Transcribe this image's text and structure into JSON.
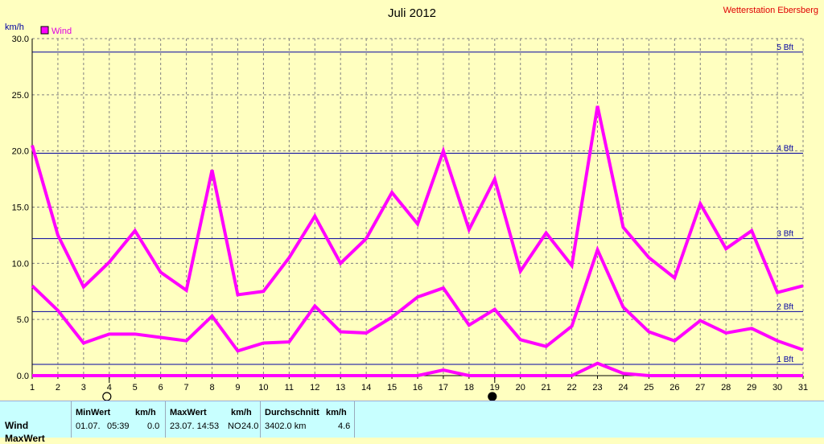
{
  "station": "Wetterstation Ebersberg",
  "chart_data": {
    "type": "line",
    "title": "Juli 2012",
    "ylabel": "km/h",
    "xlabel": "",
    "ylim": [
      0,
      30
    ],
    "yticks": [
      "0.0",
      "5.0",
      "10.0",
      "15.0",
      "20.0",
      "25.0",
      "30.0"
    ],
    "x": [
      1,
      2,
      3,
      4,
      5,
      6,
      7,
      8,
      9,
      10,
      11,
      12,
      13,
      14,
      15,
      16,
      17,
      18,
      19,
      20,
      21,
      22,
      23,
      24,
      25,
      26,
      27,
      28,
      29,
      30,
      31
    ],
    "legend": [
      "Wind"
    ],
    "grid": true,
    "series": [
      {
        "name": "Wind",
        "role": "max",
        "values": [
          20.5,
          12.5,
          7.9,
          10.1,
          12.9,
          9.2,
          7.6,
          18.3,
          7.2,
          7.5,
          10.5,
          14.2,
          10.0,
          12.2,
          16.3,
          13.5,
          20.0,
          13.0,
          17.5,
          9.3,
          12.7,
          9.8,
          24.0,
          13.2,
          10.5,
          8.7,
          15.3,
          11.3,
          12.9,
          7.4,
          8.0
        ]
      },
      {
        "name": "Wind",
        "role": "avg",
        "values": [
          8.0,
          5.8,
          2.9,
          3.7,
          3.7,
          3.4,
          3.1,
          5.3,
          2.2,
          2.9,
          3.0,
          6.2,
          3.9,
          3.8,
          5.2,
          7.0,
          7.8,
          4.5,
          5.9,
          3.2,
          2.6,
          4.4,
          11.2,
          6.1,
          3.9,
          3.1,
          4.9,
          3.8,
          4.2,
          3.1,
          2.3
        ]
      },
      {
        "name": "Wind",
        "role": "min",
        "values": [
          0,
          0,
          0,
          0,
          0,
          0,
          0,
          0,
          0,
          0,
          0,
          0,
          0,
          0,
          0,
          0,
          0.5,
          0,
          0,
          0,
          0,
          0,
          1.1,
          0.2,
          0,
          0,
          0,
          0,
          0,
          0,
          0
        ]
      }
    ],
    "reference_lines": [
      {
        "label": "1 Bft",
        "value": 1
      },
      {
        "label": "2 Bft",
        "value": 5.7
      },
      {
        "label": "3 Bft",
        "value": 12.2
      },
      {
        "label": "4 Bft",
        "value": 19.8
      },
      {
        "label": "5 Bft",
        "value": 28.8
      }
    ],
    "moon_markers": [
      {
        "day": 4,
        "phase": "full"
      },
      {
        "day": 19,
        "phase": "new"
      }
    ],
    "colors": {
      "series": "#ff00ff",
      "reference": "#0000a0",
      "grid": "#808080",
      "background": "#ffffc0"
    }
  },
  "stats": {
    "row_label": "Wind",
    "row2_label": "MaxWert",
    "min": {
      "header": "MinWert",
      "unit": "km/h",
      "date": "01.07.",
      "time": "05:39",
      "value": "0.0"
    },
    "max": {
      "header": "MaxWert",
      "unit": "km/h",
      "datetime": "23.07.  14:53",
      "dir": "NO",
      "value": "24.0"
    },
    "avg": {
      "header": "Durchschnitt",
      "unit": "km/h",
      "distance": "3402.0 km",
      "value": "4.6"
    }
  }
}
